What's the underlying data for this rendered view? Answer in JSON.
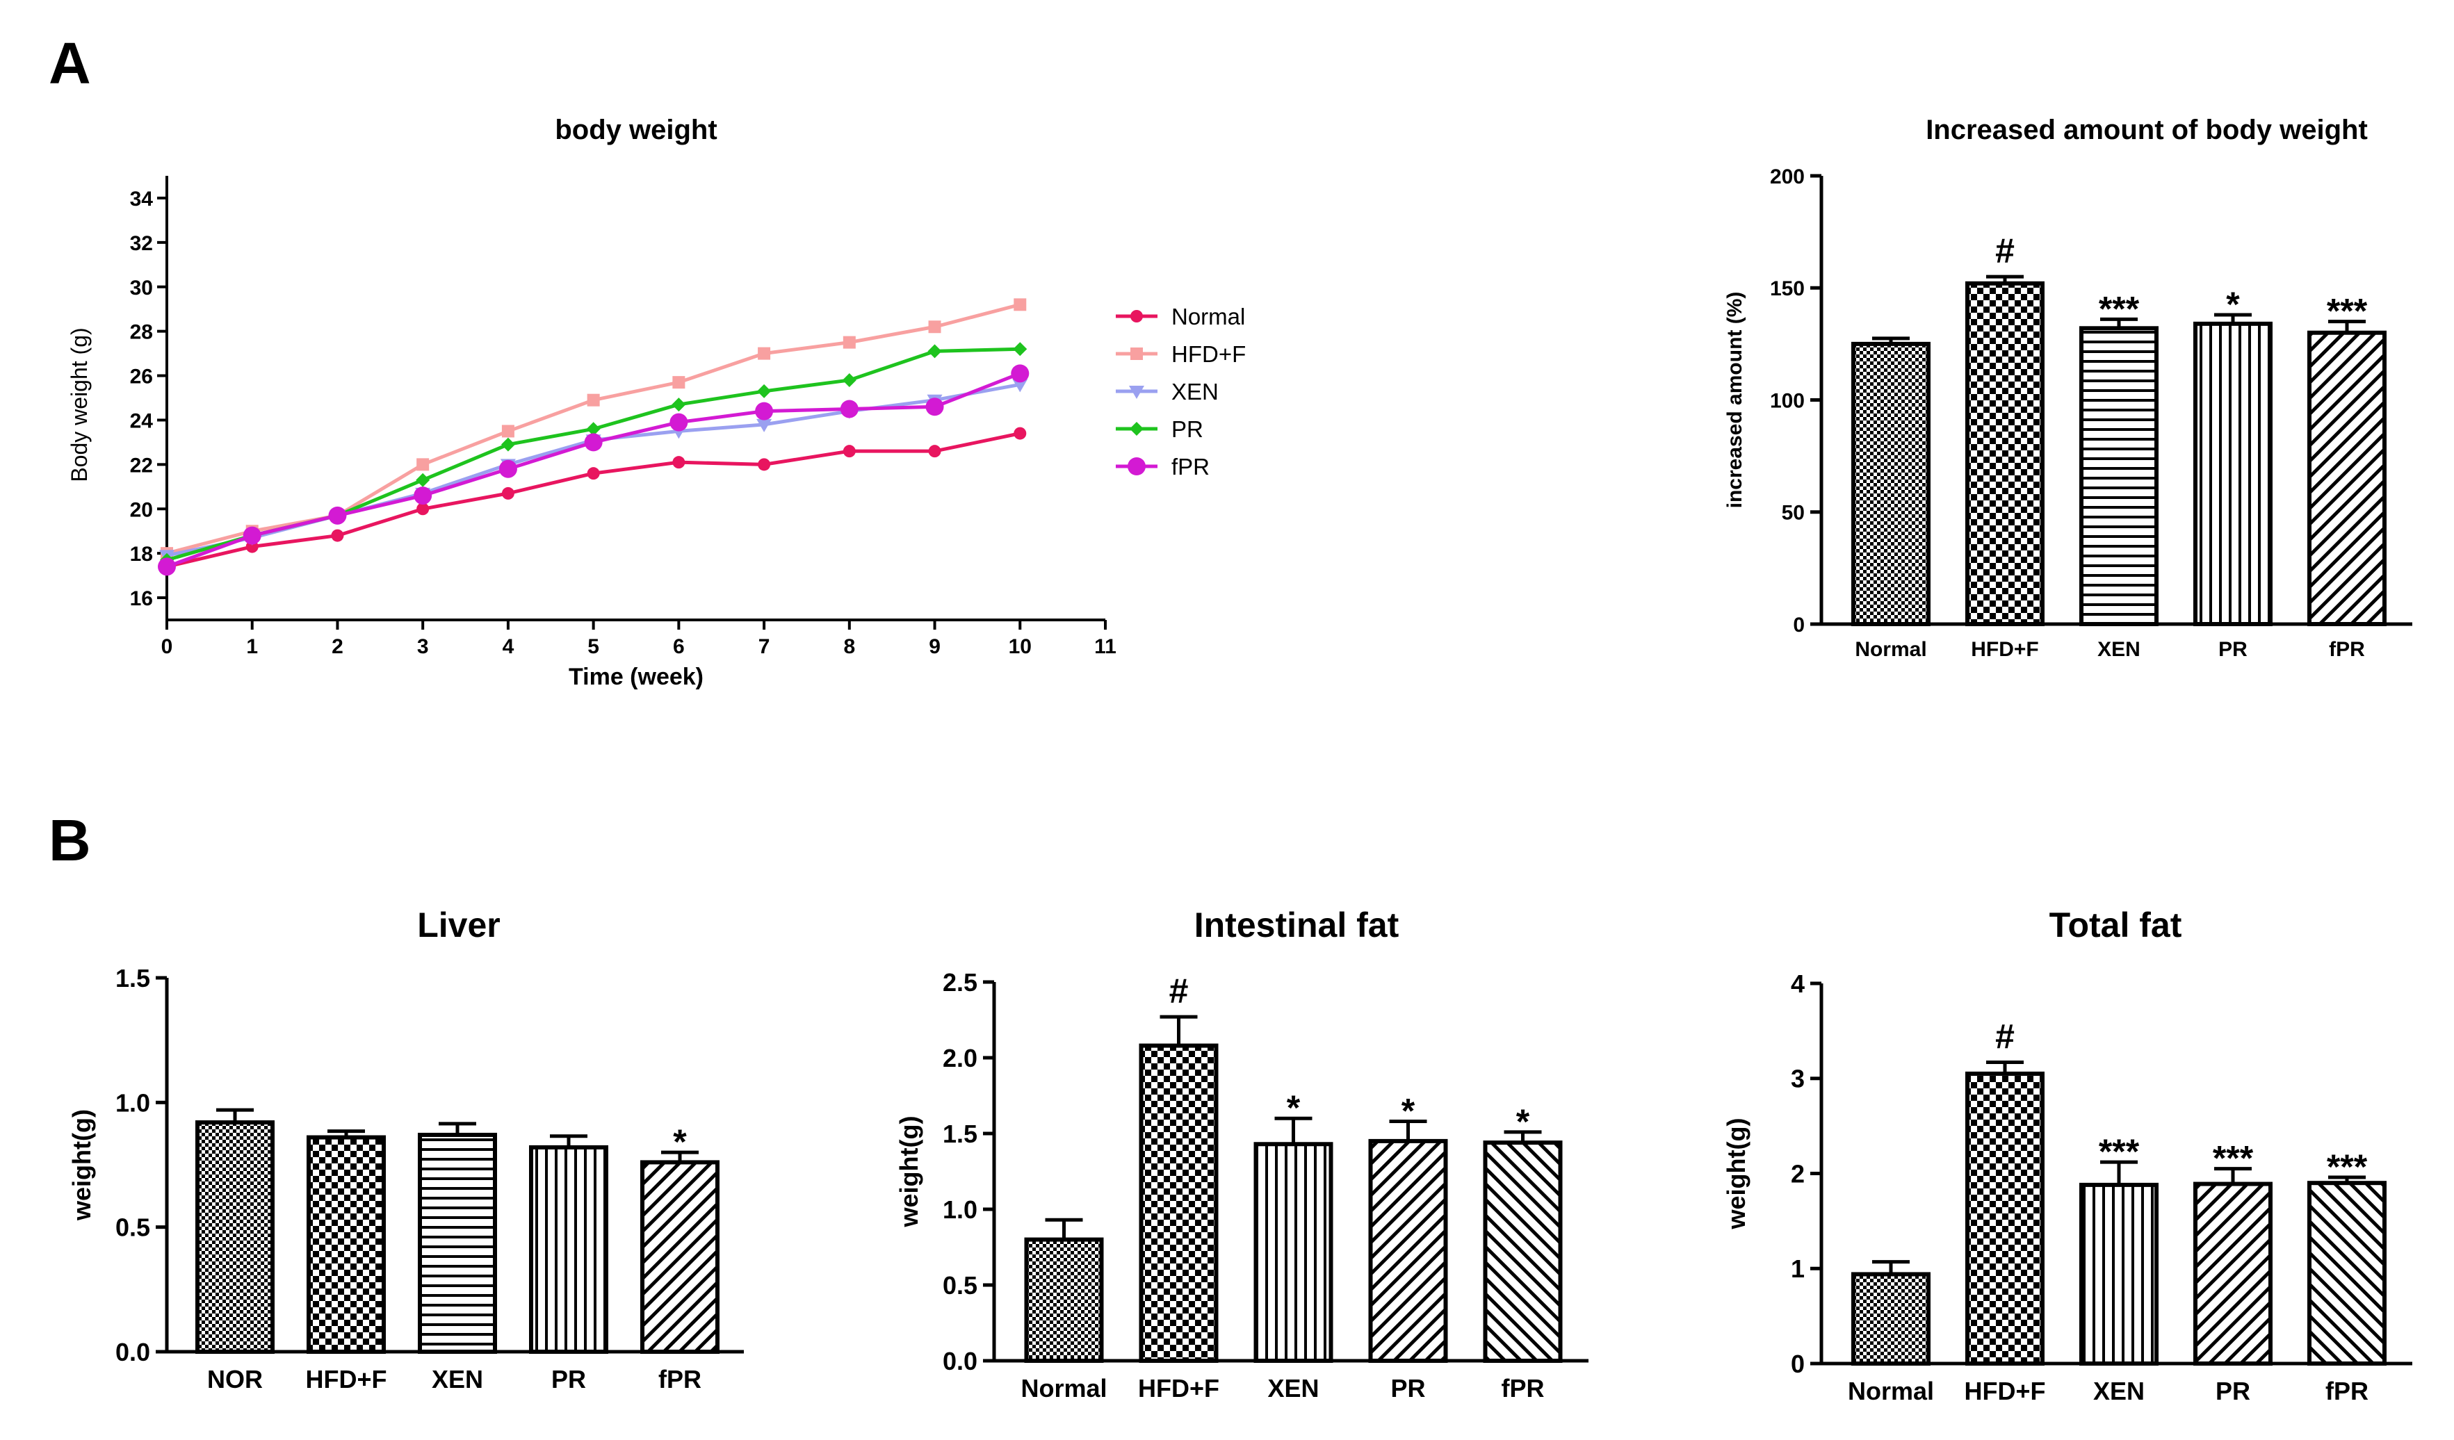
{
  "panel_labels": {
    "a": "A",
    "b": "B"
  },
  "chart_data": [
    {
      "id": "bodyweight",
      "type": "line",
      "title": "body weight",
      "xlabel": "Time (week)",
      "ylabel": "Body weight (g)",
      "xlim": [
        0,
        11
      ],
      "ylim": [
        15,
        35
      ],
      "xticks": [
        "0",
        "1",
        "2",
        "3",
        "4",
        "5",
        "6",
        "7",
        "8",
        "9",
        "10",
        "11"
      ],
      "yticks": [
        "16",
        "18",
        "20",
        "22",
        "24",
        "26",
        "28",
        "30",
        "32",
        "34"
      ],
      "legend_position": "right",
      "x": [
        0,
        1,
        2,
        3,
        4,
        5,
        6,
        7,
        8,
        9,
        10
      ],
      "series": [
        {
          "name": "Normal",
          "color": "#e8155f",
          "marker": "circle",
          "values": [
            17.4,
            18.3,
            18.8,
            20.0,
            20.7,
            21.6,
            22.1,
            22.0,
            22.6,
            22.6,
            23.4
          ]
        },
        {
          "name": "HFD+F",
          "color": "#f8a0a0",
          "marker": "square",
          "values": [
            18.0,
            19.0,
            19.7,
            22.0,
            23.5,
            24.9,
            25.7,
            27.0,
            27.5,
            28.2,
            29.2
          ]
        },
        {
          "name": "XEN",
          "color": "#9aa0f0",
          "marker": "triangle-down",
          "values": [
            17.9,
            18.7,
            19.7,
            20.7,
            22.0,
            23.1,
            23.5,
            23.8,
            24.4,
            24.9,
            25.6
          ]
        },
        {
          "name": "PR",
          "color": "#1ec31e",
          "marker": "diamond",
          "values": [
            17.7,
            18.8,
            19.7,
            21.3,
            22.9,
            23.6,
            24.7,
            25.3,
            25.8,
            27.1,
            27.2
          ]
        },
        {
          "name": "fPR",
          "color": "#d31ad3",
          "marker": "circle-large",
          "values": [
            17.4,
            18.8,
            19.7,
            20.6,
            21.8,
            23.0,
            23.9,
            24.4,
            24.5,
            24.6,
            26.1
          ]
        }
      ]
    },
    {
      "id": "increased",
      "type": "bar",
      "title": "Increased amount of body weight",
      "xlabel": "",
      "ylabel": "increased amount (%)",
      "ylim": [
        0,
        200
      ],
      "yticks": [
        "0",
        "50",
        "100",
        "150",
        "200"
      ],
      "categories": [
        "Normal",
        "HFD+F",
        "XEN",
        "PR",
        "fPR"
      ],
      "values": [
        125,
        152,
        132,
        134,
        130
      ],
      "errors": [
        2.5,
        3,
        4,
        4,
        5
      ],
      "annotations": [
        "",
        "#",
        "***",
        "*",
        "***"
      ],
      "patterns": [
        "dots",
        "checker",
        "hlines",
        "vlines",
        "diag"
      ]
    },
    {
      "id": "liver",
      "type": "bar",
      "title": "Liver",
      "xlabel": "",
      "ylabel": "weight(g)",
      "ylim": [
        0,
        1.5
      ],
      "yticks": [
        "0.0",
        "0.5",
        "1.0",
        "1.5"
      ],
      "categories": [
        "NOR",
        "HFD+F",
        "XEN",
        "PR",
        "fPR"
      ],
      "values": [
        0.92,
        0.86,
        0.87,
        0.82,
        0.76
      ],
      "errors": [
        0.05,
        0.025,
        0.045,
        0.045,
        0.04
      ],
      "annotations": [
        "",
        "",
        "",
        "",
        "*"
      ],
      "patterns": [
        "dots",
        "checker",
        "hlines",
        "vlines",
        "diag"
      ]
    },
    {
      "id": "intestinal",
      "type": "bar",
      "title": "Intestinal fat",
      "xlabel": "",
      "ylabel": "weight(g)",
      "ylim": [
        0,
        2.5
      ],
      "yticks": [
        "0.0",
        "0.5",
        "1.0",
        "1.5",
        "2.0",
        "2.5"
      ],
      "categories": [
        "Normal",
        "HFD+F",
        "XEN",
        "PR",
        "fPR"
      ],
      "values": [
        0.8,
        2.08,
        1.43,
        1.45,
        1.44
      ],
      "errors": [
        0.13,
        0.19,
        0.17,
        0.13,
        0.07
      ],
      "annotations": [
        "",
        "#",
        "*",
        "*",
        "*"
      ],
      "patterns": [
        "dots",
        "checker",
        "vlines",
        "diag",
        "diagrev"
      ]
    },
    {
      "id": "totalfat",
      "type": "bar",
      "title": "Total fat",
      "xlabel": "",
      "ylabel": "weight(g)",
      "ylim": [
        0,
        4
      ],
      "yticks": [
        "0",
        "1",
        "2",
        "3",
        "4"
      ],
      "categories": [
        "Normal",
        "HFD+F",
        "XEN",
        "PR",
        "fPR"
      ],
      "values": [
        0.94,
        3.05,
        1.88,
        1.89,
        1.9
      ],
      "errors": [
        0.13,
        0.12,
        0.24,
        0.16,
        0.06
      ],
      "annotations": [
        "",
        "#",
        "***",
        "***",
        "***"
      ],
      "patterns": [
        "dots",
        "checker",
        "vlines",
        "diag",
        "diagrev"
      ]
    }
  ]
}
